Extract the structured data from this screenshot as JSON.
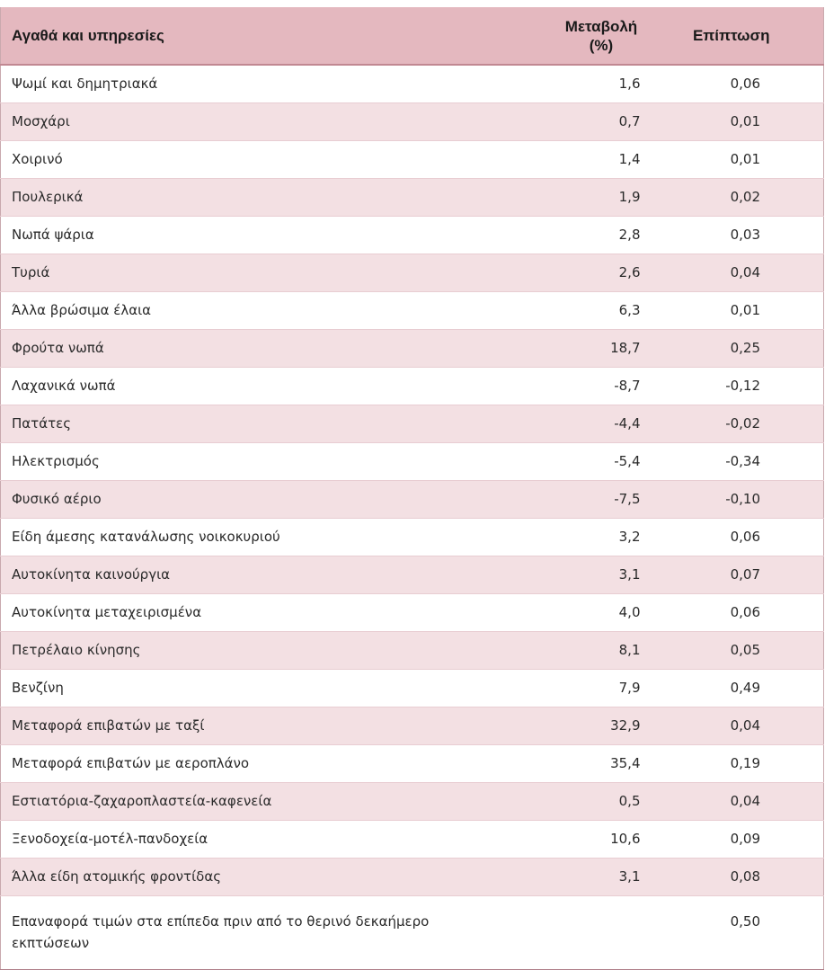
{
  "table": {
    "headers": {
      "item": "Αγαθά και υπηρεσίες",
      "change_line1": "Μεταβολή",
      "change_line2": "(%)",
      "impact": "Επίπτωση"
    },
    "rows": [
      {
        "item": "Ψωμί και δημητριακά",
        "change": "1,6",
        "impact": "0,06"
      },
      {
        "item": "Μοσχάρι",
        "change": "0,7",
        "impact": "0,01"
      },
      {
        "item": "Χοιρινό",
        "change": "1,4",
        "impact": "0,01"
      },
      {
        "item": "Πουλερικά",
        "change": "1,9",
        "impact": "0,02"
      },
      {
        "item": "Νωπά ψάρια",
        "change": "2,8",
        "impact": "0,03"
      },
      {
        "item": "Τυριά",
        "change": "2,6",
        "impact": "0,04"
      },
      {
        "item": "Άλλα βρώσιμα έλαια",
        "change": "6,3",
        "impact": "0,01"
      },
      {
        "item": "Φρούτα νωπά",
        "change": "18,7",
        "impact": "0,25"
      },
      {
        "item": "Λαχανικά νωπά",
        "change": "-8,7",
        "impact": "-0,12"
      },
      {
        "item": "Πατάτες",
        "change": "-4,4",
        "impact": "-0,02"
      },
      {
        "item": "Ηλεκτρισμός",
        "change": "-5,4",
        "impact": "-0,34"
      },
      {
        "item": "Φυσικό αέριο",
        "change": "-7,5",
        "impact": "-0,10"
      },
      {
        "item": "Είδη άμεσης κατανάλωσης νοικοκυριού",
        "change": "3,2",
        "impact": "0,06"
      },
      {
        "item": "Αυτοκίνητα καινούργια",
        "change": "3,1",
        "impact": "0,07"
      },
      {
        "item": "Αυτοκίνητα μεταχειρισμένα",
        "change": "4,0",
        "impact": "0,06"
      },
      {
        "item": "Πετρέλαιο κίνησης",
        "change": "8,1",
        "impact": "0,05"
      },
      {
        "item": "Βενζίνη",
        "change": "7,9",
        "impact": "0,49"
      },
      {
        "item": "Μεταφορά επιβατών με ταξί",
        "change": "32,9",
        "impact": "0,04"
      },
      {
        "item": "Μεταφορά επιβατών με αεροπλάνο",
        "change": "35,4",
        "impact": "0,19"
      },
      {
        "item": "Εστιατόρια-ζαχαροπλαστεία-καφενεία",
        "change": "0,5",
        "impact": "0,04"
      },
      {
        "item": "Ξενοδοχεία-μοτέλ-πανδοχεία",
        "change": "10,6",
        "impact": "0,09"
      },
      {
        "item": "Άλλα είδη ατομικής φροντίδας",
        "change": "3,1",
        "impact": "0,08"
      },
      {
        "item": "Επαναφορά τιμών στα επίπεδα πριν από το θερινό δεκαήμερο εκπτώσεων",
        "change": "",
        "impact": "0,50"
      }
    ]
  }
}
